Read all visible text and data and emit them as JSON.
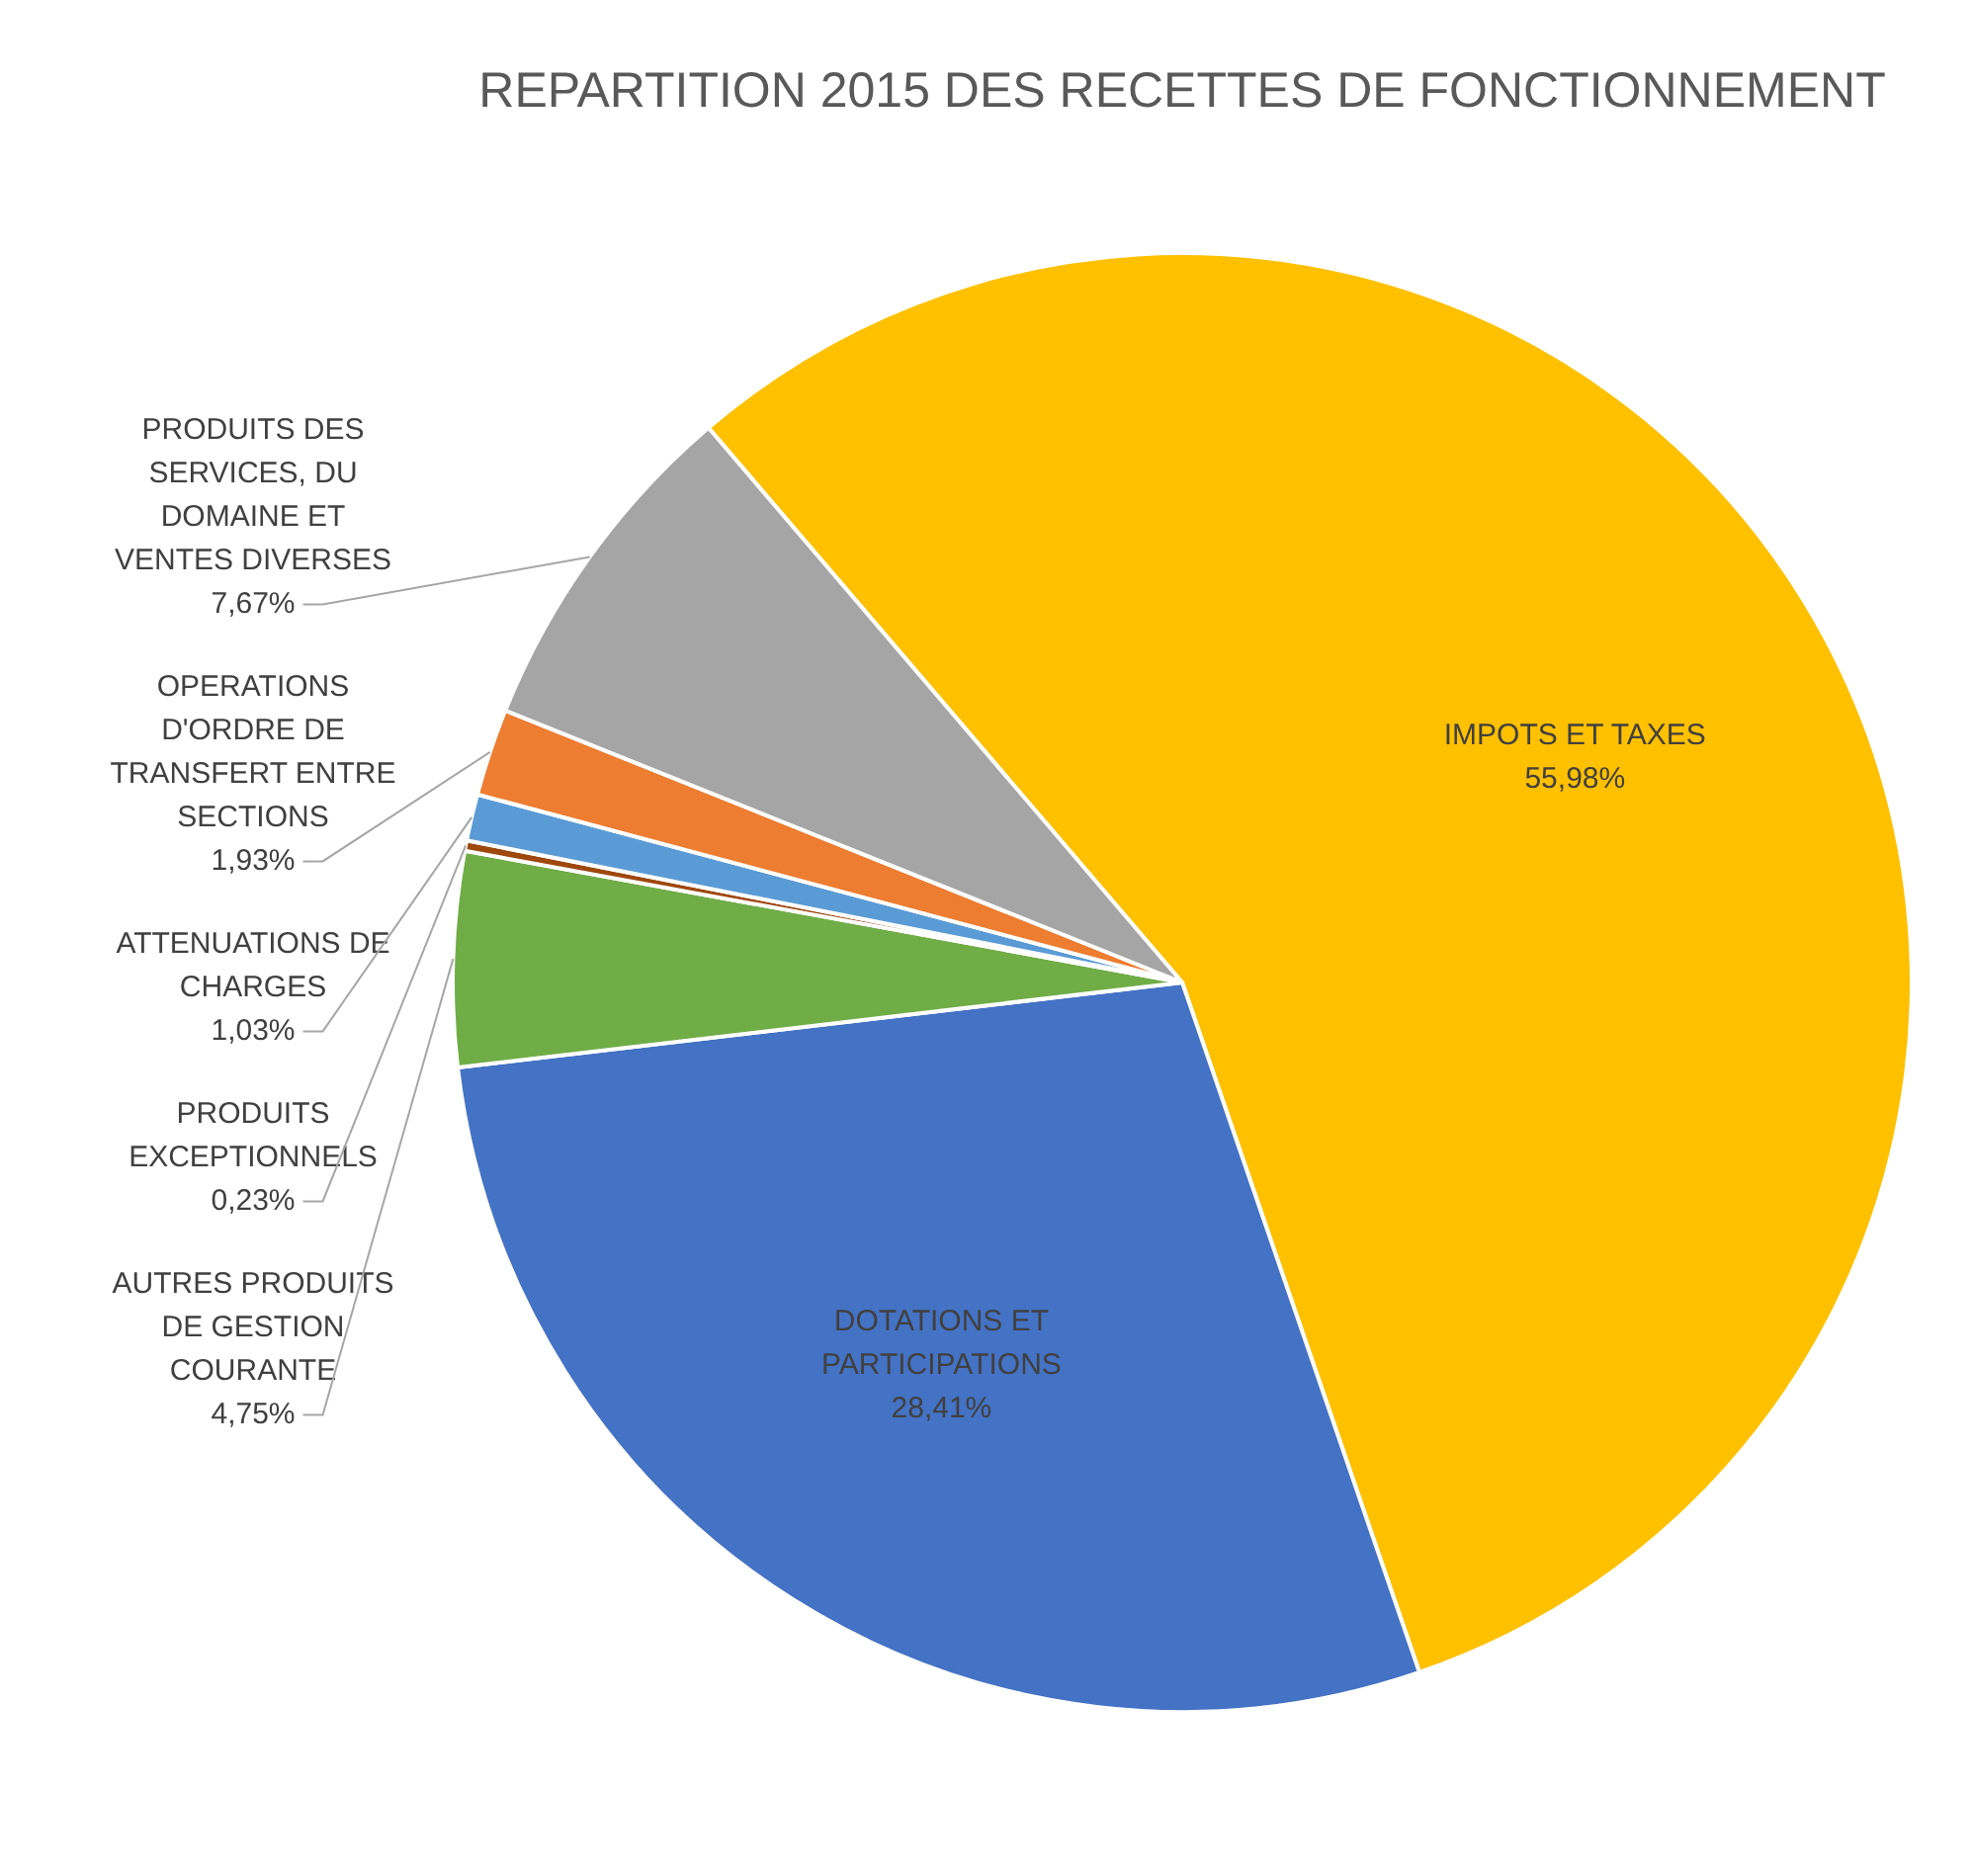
{
  "chart_data": {
    "type": "pie",
    "title": "REPARTITION 2015 DES RECETTES DE FONCTIONNEMENT",
    "categories": [
      "IMPOTS ET TAXES",
      "DOTATIONS ET PARTICIPATIONS",
      "AUTRES PRODUITS DE GESTION COURANTE",
      "PRODUITS EXCEPTIONNELS",
      "ATTENUATIONS DE CHARGES",
      "OPERATIONS D'ORDRE DE TRANSFERT ENTRE SECTIONS",
      "PRODUITS DES SERVICES, DU DOMAINE ET VENTES DIVERSES"
    ],
    "values": [
      55.98,
      28.41,
      4.75,
      0.23,
      1.03,
      1.93,
      7.67
    ],
    "value_labels": [
      "55,98%",
      "28,41%",
      "4,75%",
      "0,23%",
      "1,03%",
      "1,93%",
      "7,67%"
    ],
    "colors": [
      "#ffc000",
      "#4472c4",
      "#70ad47",
      "#9e480e",
      "#5b9bd5",
      "#ed7d31",
      "#a5a5a5"
    ],
    "legend": false
  }
}
